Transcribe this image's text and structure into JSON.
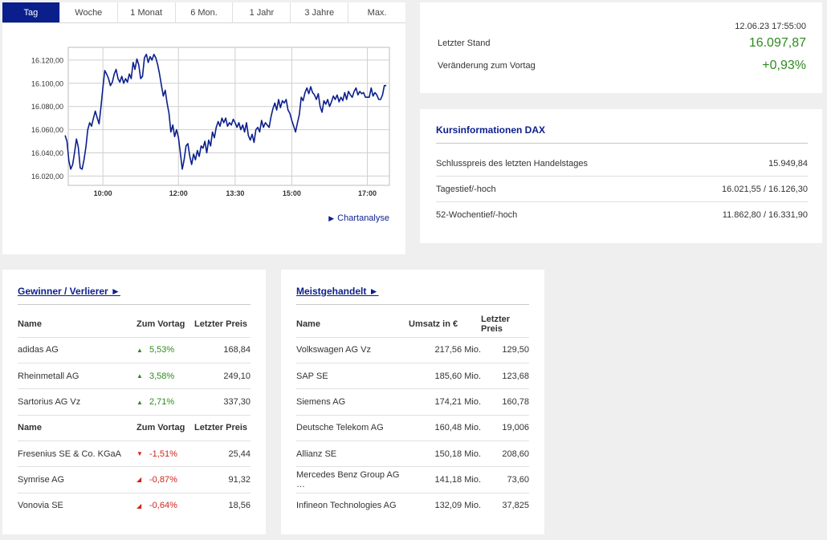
{
  "tabs": [
    {
      "label": "Tag",
      "active": true
    },
    {
      "label": "Woche",
      "active": false
    },
    {
      "label": "1 Monat",
      "active": false
    },
    {
      "label": "6 Mon.",
      "active": false
    },
    {
      "label": "1 Jahr",
      "active": false
    },
    {
      "label": "3 Jahre",
      "active": false
    },
    {
      "label": "Max.",
      "active": false
    }
  ],
  "chart_link": "Chartanalyse",
  "chart_data": {
    "type": "line",
    "title": "",
    "xlabel": "",
    "ylabel": "",
    "line_color": "#0b1f8c",
    "y_ticks": [
      "16.020,00",
      "16.040,00",
      "16.060,00",
      "16.080,00",
      "16.100,00",
      "16.120,00"
    ],
    "y_tick_values": [
      16020,
      16040,
      16060,
      16080,
      16100,
      16120
    ],
    "ylim": [
      16012,
      16131
    ],
    "x_ticks": [
      "10:00",
      "12:00",
      "13:30",
      "15:00",
      "17:00"
    ],
    "x_tick_values": [
      "10:00",
      "12:00",
      "13:30",
      "15:00",
      "17:00"
    ],
    "xlim": [
      "09:05",
      "17:35"
    ],
    "grid": true,
    "series": [
      {
        "name": "",
        "x": [
          "09:00",
          "09:03",
          "09:06",
          "09:09",
          "09:12",
          "09:15",
          "09:18",
          "09:21",
          "09:24",
          "09:27",
          "09:30",
          "09:33",
          "09:36",
          "09:39",
          "09:42",
          "09:45",
          "09:48",
          "09:51",
          "09:54",
          "09:57",
          "10:00",
          "10:03",
          "10:06",
          "10:09",
          "10:12",
          "10:15",
          "10:18",
          "10:21",
          "10:24",
          "10:27",
          "10:30",
          "10:33",
          "10:36",
          "10:39",
          "10:42",
          "10:45",
          "10:48",
          "10:51",
          "10:54",
          "10:57",
          "11:00",
          "11:03",
          "11:06",
          "11:09",
          "11:12",
          "11:15",
          "11:18",
          "11:21",
          "11:24",
          "11:27",
          "11:30",
          "11:33",
          "11:36",
          "11:39",
          "11:42",
          "11:45",
          "11:48",
          "11:51",
          "11:54",
          "11:57",
          "12:00",
          "12:03",
          "12:06",
          "12:09",
          "12:12",
          "12:15",
          "12:18",
          "12:21",
          "12:24",
          "12:27",
          "12:30",
          "12:33",
          "12:36",
          "12:39",
          "12:42",
          "12:45",
          "12:48",
          "12:51",
          "12:54",
          "12:57",
          "13:00",
          "13:03",
          "13:06",
          "13:09",
          "13:12",
          "13:15",
          "13:18",
          "13:21",
          "13:24",
          "13:27",
          "13:30",
          "13:33",
          "13:36",
          "13:39",
          "13:42",
          "13:45",
          "13:48",
          "13:51",
          "13:54",
          "13:57",
          "14:00",
          "14:03",
          "14:06",
          "14:09",
          "14:12",
          "14:15",
          "14:18",
          "14:21",
          "14:24",
          "14:27",
          "14:30",
          "14:33",
          "14:36",
          "14:39",
          "14:42",
          "14:45",
          "14:48",
          "14:51",
          "14:54",
          "14:57",
          "15:00",
          "15:03",
          "15:06",
          "15:09",
          "15:12",
          "15:15",
          "15:18",
          "15:21",
          "15:24",
          "15:27",
          "15:30",
          "15:33",
          "15:36",
          "15:39",
          "15:42",
          "15:45",
          "15:48",
          "15:51",
          "15:54",
          "15:57",
          "16:00",
          "16:03",
          "16:06",
          "16:09",
          "16:12",
          "16:15",
          "16:18",
          "16:21",
          "16:24",
          "16:27",
          "16:30",
          "16:33",
          "16:36",
          "16:39",
          "16:42",
          "16:45",
          "16:48",
          "16:51",
          "16:54",
          "16:57",
          "17:00",
          "17:03",
          "17:06",
          "17:09",
          "17:12",
          "17:15",
          "17:18",
          "17:21",
          "17:24",
          "17:27",
          "17:30"
        ],
        "values": [
          16055,
          16050,
          16033,
          16026,
          16030,
          16040,
          16052,
          16045,
          16027,
          16026,
          16034,
          16045,
          16060,
          16066,
          16063,
          16070,
          16076,
          16070,
          16065,
          16080,
          16096,
          16111,
          16108,
          16104,
          16098,
          16101,
          16108,
          16112,
          16104,
          16101,
          16106,
          16100,
          16104,
          16101,
          16108,
          16104,
          16118,
          16112,
          16121,
          16116,
          16104,
          16106,
          16122,
          16125,
          16118,
          16123,
          16120,
          16125,
          16122,
          16116,
          16108,
          16098,
          16089,
          16094,
          16083,
          16074,
          16058,
          16064,
          16054,
          16060,
          16053,
          16040,
          16026,
          16034,
          16046,
          16048,
          16037,
          16030,
          16039,
          16034,
          16042,
          16037,
          16046,
          16044,
          16050,
          16040,
          16051,
          16046,
          16058,
          16053,
          16062,
          16067,
          16063,
          16070,
          16066,
          16070,
          16063,
          16066,
          16064,
          16069,
          16066,
          16062,
          16066,
          16060,
          16064,
          16058,
          16066,
          16055,
          16051,
          16056,
          16049,
          16060,
          16062,
          16058,
          16068,
          16062,
          16066,
          16064,
          16062,
          16071,
          16078,
          16083,
          16077,
          16086,
          16079,
          16085,
          16083,
          16086,
          16077,
          16074,
          16068,
          16063,
          16058,
          16066,
          16073,
          16088,
          16085,
          16092,
          16096,
          16091,
          16097,
          16092,
          16090,
          16086,
          16091,
          16080,
          16075,
          16085,
          16082,
          16086,
          16080,
          16084,
          16089,
          16086,
          16090,
          16084,
          16088,
          16085,
          16092,
          16086,
          16093,
          16090,
          16088,
          16093,
          16096,
          16090,
          16093,
          16091,
          16092,
          16088,
          16088,
          16088,
          16096,
          16089,
          16092,
          16090,
          16086,
          16086,
          16090,
          16098,
          16098
        ]
      }
    ]
  },
  "quote": {
    "timestamp": "12.06.23 17:55:00",
    "last_label": "Letzter Stand",
    "last_value": "16.097,87",
    "change_label": "Veränderung zum Vortag",
    "change_value": "+0,93%",
    "positive_color": "#2e8b1e"
  },
  "info": {
    "title": "Kursinformationen DAX",
    "rows": [
      {
        "label": "Schlusspreis des letzten Handelstages",
        "value": "15.949,84"
      },
      {
        "label": "Tagestief/-hoch",
        "value": "16.021,55 / 16.126,30"
      },
      {
        "label": "52-Wochentief/-hoch",
        "value": "11.862,80 / 16.331,90"
      }
    ]
  },
  "gainers_losers": {
    "title": "Gewinner / Verlierer ►",
    "headers": {
      "name": "Name",
      "change": "Zum Vortag",
      "price": "Letzter Preis"
    },
    "gainers": [
      {
        "name": "adidas AG",
        "change": "5,53%",
        "price": "168,84",
        "icon": "triangle-up-icon"
      },
      {
        "name": "Rheinmetall AG",
        "change": "3,58%",
        "price": "249,10",
        "icon": "triangle-up-icon"
      },
      {
        "name": "Sartorius AG Vz",
        "change": "2,71%",
        "price": "337,30",
        "icon": "triangle-up-icon"
      }
    ],
    "losers": [
      {
        "name": "Fresenius SE & Co. KGaA",
        "change": "-1,51%",
        "price": "25,44",
        "icon": "triangle-down-icon"
      },
      {
        "name": "Symrise AG",
        "change": "-0,87%",
        "price": "91,32",
        "icon": "triangle-corner-icon"
      },
      {
        "name": "Vonovia SE",
        "change": "-0,64%",
        "price": "18,56",
        "icon": "triangle-corner-icon"
      }
    ],
    "up_color": "#2e8b1e",
    "down_color": "#d0241a"
  },
  "most_traded": {
    "title": "Meistgehandelt ►",
    "headers": {
      "name": "Name",
      "volume": "Umsatz in €",
      "price": "Letzter Preis"
    },
    "rows": [
      {
        "name": "Volkswagen AG Vz",
        "volume": "217,56 Mio.",
        "price": "129,50"
      },
      {
        "name": "SAP SE",
        "volume": "185,60 Mio.",
        "price": "123,68"
      },
      {
        "name": "Siemens AG",
        "volume": "174,21 Mio.",
        "price": "160,78"
      },
      {
        "name": "Deutsche Telekom AG",
        "volume": "160,48 Mio.",
        "price": "19,006"
      },
      {
        "name": "Allianz SE",
        "volume": "150,18 Mio.",
        "price": "208,60"
      },
      {
        "name": "Mercedes Benz Group AG …",
        "volume": "141,18 Mio.",
        "price": "73,60"
      },
      {
        "name": "Infineon Technologies AG",
        "volume": "132,09 Mio.",
        "price": "37,825"
      }
    ]
  }
}
